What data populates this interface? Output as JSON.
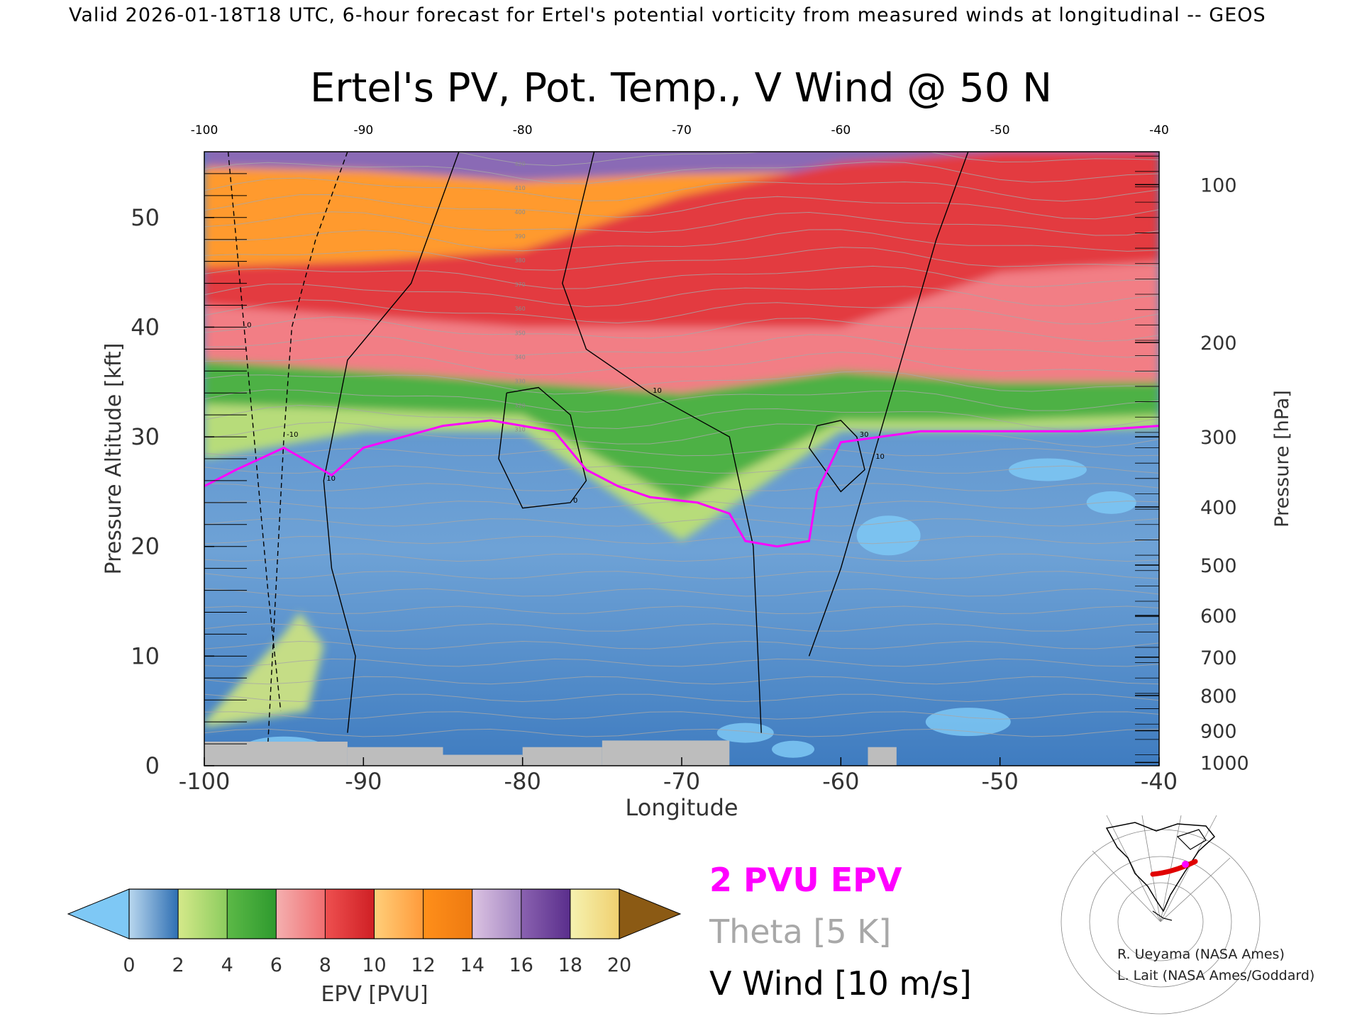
{
  "header": {
    "caption": "Valid 2026-01-18T18 UTC, 6-hour forecast for Ertel's potential vorticity from measured winds at longitudinal -- GEOS"
  },
  "chart_data": {
    "type": "heatmap",
    "title": "Ertel's PV, Pot. Temp., V Wind @ 50 N",
    "xlabel": "Longitude",
    "ylabel_left": "Pressure Altitude [kft]",
    "ylabel_right": "Pressure [hPa]",
    "xlim": [
      -100,
      -40
    ],
    "ylim": [
      0,
      56
    ],
    "x_ticks": [
      "-100",
      "-90",
      "-80",
      "-70",
      "-60",
      "-50",
      "-40"
    ],
    "top_ticks": [
      "-100",
      "-90",
      "-80",
      "-70",
      "-60",
      "-50",
      "-40"
    ],
    "y_ticks": [
      "0",
      "10",
      "20",
      "30",
      "40",
      "50"
    ],
    "pressure_ticks": [
      {
        "label": "100",
        "alt": 53.0
      },
      {
        "label": "200",
        "alt": 38.6
      },
      {
        "label": "300",
        "alt": 30.0
      },
      {
        "label": "400",
        "alt": 23.6
      },
      {
        "label": "500",
        "alt": 18.3
      },
      {
        "label": "600",
        "alt": 13.7
      },
      {
        "label": "700",
        "alt": 9.9
      },
      {
        "label": "800",
        "alt": 6.4
      },
      {
        "label": "900",
        "alt": 3.2
      },
      {
        "label": "1000",
        "alt": 0.3
      }
    ],
    "colorbar": {
      "label": "EPV [PVU]",
      "ticks": [
        "0",
        "2",
        "4",
        "6",
        "8",
        "10",
        "12",
        "14",
        "16",
        "18",
        "20"
      ],
      "below_color": "#7ec8f5",
      "above_color": "#8b5a14",
      "segments": [
        [
          "#b9d7ee",
          "#2e6fb3"
        ],
        [
          "#d5e98a",
          "#8ccc5e"
        ],
        [
          "#5cb947",
          "#2e9a2e"
        ],
        [
          "#f4b0b0",
          "#f06e70"
        ],
        [
          "#ee5050",
          "#cf1f24"
        ],
        [
          "#ffcf7a",
          "#ff9a3a"
        ],
        [
          "#ff8f1a",
          "#ee7a10"
        ],
        [
          "#dcc3e2",
          "#a386c2"
        ],
        [
          "#8a62b0",
          "#5a2e8c"
        ],
        [
          "#f5f2b0",
          "#f0d070"
        ]
      ]
    },
    "epv_layers": [
      {
        "name": "stratosphere-upper",
        "pvu": 15,
        "color": "#8a6ab5",
        "top": [
          57,
          57,
          57,
          57,
          57,
          57,
          57
        ],
        "bottom": [
          54.6,
          54.3,
          53.3,
          54.0,
          54.2,
          55.0,
          55.5
        ]
      },
      {
        "name": "stratosphere-orange",
        "pvu": 12,
        "color": "#ff9a2e",
        "top": [
          54.6,
          54.3,
          53.3,
          54.0,
          54.2,
          55.0,
          55.5
        ],
        "bottom": [
          45.5,
          46,
          47,
          52,
          55,
          56,
          56
        ]
      },
      {
        "name": "stratosphere-red",
        "pvu": 9,
        "color": "#e33b3f",
        "top": [
          45.5,
          46,
          47,
          52,
          55,
          56,
          56
        ],
        "bottom": [
          42,
          41,
          40,
          40,
          40,
          45,
          46
        ]
      },
      {
        "name": "stratosphere-pink",
        "pvu": 7,
        "color": "#f27e85",
        "top": [
          42,
          41,
          40,
          40,
          40,
          45,
          46
        ],
        "bottom": [
          37,
          36,
          35,
          34,
          36,
          35,
          35
        ]
      },
      {
        "name": "tropopause-green",
        "pvu": 5,
        "color": "#4eb144",
        "top": [
          37,
          36,
          35,
          34,
          36,
          35,
          35
        ],
        "bottom": [
          33,
          32.5,
          32,
          24,
          31.5,
          31.5,
          32
        ]
      },
      {
        "name": "tropopause-lightgreen",
        "pvu": 3,
        "color": "#b7dc7a",
        "top": [
          33,
          32.5,
          32,
          24,
          31.5,
          31.5,
          32
        ],
        "bottom": [
          28,
          30.5,
          30.5,
          20.5,
          30.5,
          30.5,
          30.8
        ]
      }
    ],
    "tropopause_2pvu": {
      "x": [
        -100,
        -98,
        -95,
        -92,
        -90,
        -85,
        -82,
        -78,
        -76,
        -74,
        -72,
        -69,
        -67,
        -66,
        -64,
        -62,
        -61.5,
        -60,
        -55,
        -50,
        -45,
        -40
      ],
      "y": [
        25.5,
        27,
        29,
        26.5,
        29,
        31,
        31.5,
        30.5,
        27,
        25.5,
        24.5,
        24,
        23,
        20.5,
        20,
        20.5,
        25,
        29.5,
        30.5,
        30.5,
        30.5,
        31
      ]
    },
    "surface_gray": [
      {
        "x0": -100,
        "x1": -91,
        "height": 2.2
      },
      {
        "x0": -91,
        "x1": -85,
        "height": 1.7
      },
      {
        "x0": -85,
        "x1": -80,
        "height": 1.0
      },
      {
        "x0": -80,
        "x1": -75,
        "height": 1.7
      },
      {
        "x0": -75,
        "x1": -67,
        "height": 2.3
      },
      {
        "x0": -67,
        "x1": -40,
        "height": 0.0
      },
      {
        "x0": -58.3,
        "x1": -56.5,
        "height": 1.7
      }
    ],
    "v_wind_contours": [
      {
        "label": "0",
        "x": [
          -98.5,
          -98,
          -97.5,
          -96,
          -95.2
        ],
        "y": [
          56,
          48,
          40,
          16,
          5
        ],
        "dashed": true
      },
      {
        "label": "-10",
        "x": [
          -91,
          -93,
          -94.5,
          -95,
          -95.5,
          -96
        ],
        "y": [
          56,
          48,
          40,
          30,
          16,
          2
        ],
        "dashed": true
      },
      {
        "label": "10",
        "x": [
          -84,
          -87,
          -91,
          -92.5,
          -92,
          -90.5,
          -91
        ],
        "y": [
          56,
          44,
          37,
          26,
          18,
          10,
          3
        ],
        "dashed": false
      },
      {
        "label": "10",
        "x": [
          -75.5,
          -77.5,
          -76,
          -72,
          -67,
          -65.5,
          -65
        ],
        "y": [
          56,
          44,
          38,
          34,
          30,
          20,
          3
        ],
        "dashed": false
      },
      {
        "label": "10",
        "x": [
          -52,
          -54,
          -56,
          -58,
          -60,
          -62
        ],
        "y": [
          56,
          48,
          38,
          28,
          18,
          10
        ],
        "dashed": false
      },
      {
        "label": "0",
        "x": [
          -81,
          -79,
          -77,
          -76,
          -77,
          -80,
          -81.5,
          -81
        ],
        "y": [
          34,
          34.5,
          32,
          26,
          24,
          23.5,
          28,
          34
        ],
        "dashed": false
      },
      {
        "label": "30",
        "x": [
          -62,
          -61.5,
          -60,
          -59,
          -58.5,
          -60,
          -62
        ],
        "y": [
          29,
          31,
          31.5,
          30,
          27,
          25,
          29
        ],
        "dashed": false
      }
    ],
    "theta_labels": [
      "310",
      "320",
      "330",
      "340",
      "350",
      "360",
      "370",
      "380",
      "390",
      "400",
      "410",
      "420"
    ],
    "legend": {
      "pv2": "2 PVU EPV",
      "theta": "Theta [5 K]",
      "vwind": "V Wind [10 m/s]",
      "pv2_color": "#ff00ff",
      "theta_color": "#a8a8a8",
      "vwind_color": "#000000"
    },
    "grid": false
  },
  "inset_map": {
    "description_label": "",
    "track_color": "#e00000"
  },
  "credits": {
    "line1": "R. Ueyama (NASA Ames)",
    "line2": "L. Lait (NASA Ames/Goddard)"
  }
}
